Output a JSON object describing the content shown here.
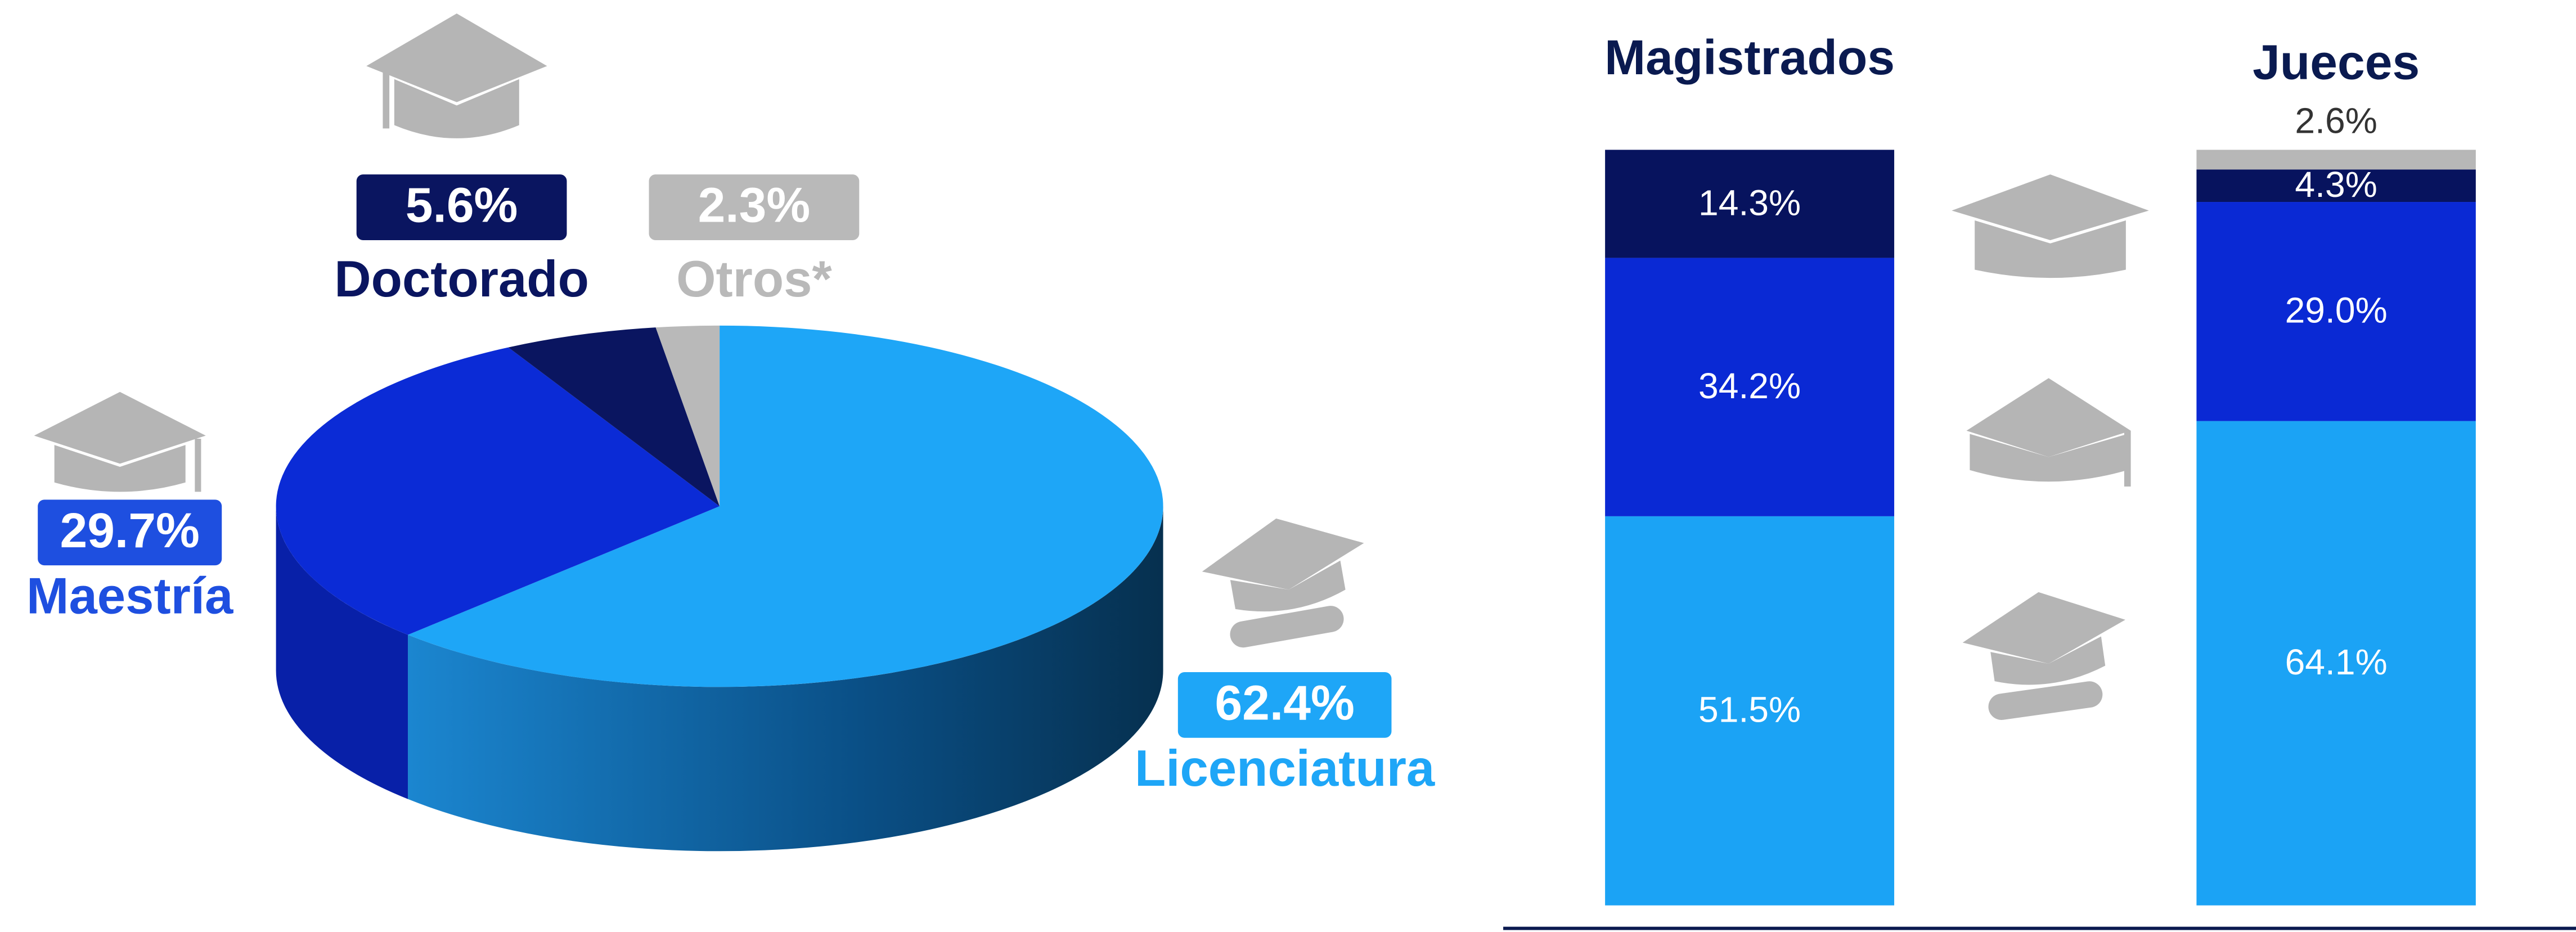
{
  "chart_data": [
    {
      "type": "pie",
      "categories": [
        "Licenciatura",
        "Maestría",
        "Doctorado",
        "Otros*"
      ],
      "values": [
        62.4,
        29.7,
        5.6,
        2.3
      ],
      "value_labels": [
        "62.4%",
        "29.7%",
        "5.6%",
        "2.3%"
      ],
      "colors": [
        "#1ea6f7",
        "#0b2bd6",
        "#0a1560",
        "#b9b9b9"
      ]
    },
    {
      "type": "stacked_bar",
      "categories": [
        "Magistrados",
        "Jueces"
      ],
      "ylim": [
        0,
        100
      ],
      "series": [
        {
          "color": "#1ba3f5",
          "values": [
            51.5,
            64.1
          ],
          "value_labels": [
            "51.5%",
            "64.1%"
          ]
        },
        {
          "color": "#0a29d4",
          "values": [
            34.2,
            29.0
          ],
          "value_labels": [
            "34.2%",
            "29.0%"
          ]
        },
        {
          "color": "#07135e",
          "values": [
            14.3,
            4.3
          ],
          "value_labels": [
            "14.3%",
            "4.3%"
          ]
        },
        {
          "color": "#b7b7b7",
          "values": [
            null,
            2.6
          ],
          "value_labels": [
            null,
            "2.6%"
          ]
        }
      ]
    }
  ]
}
